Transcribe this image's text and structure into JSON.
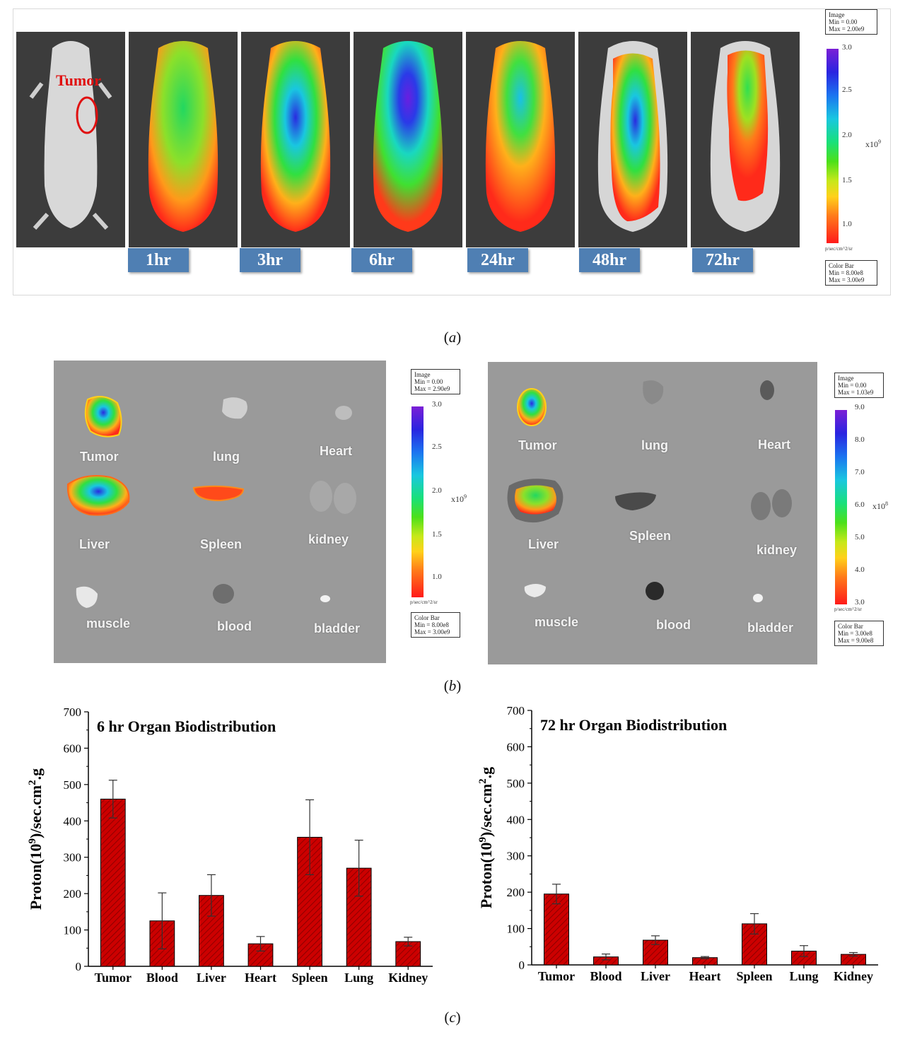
{
  "panel_a": {
    "tumor_label": "Tumor",
    "time_labels": [
      "1hr",
      "3hr",
      "6hr",
      "24hr",
      "48hr",
      "72hr"
    ],
    "colorbar": {
      "image_box": [
        "Image",
        "Min = 0.00",
        "Max = 2.00e9"
      ],
      "ticks": [
        "3.0",
        "2.5",
        "2.0",
        "1.5",
        "1.0"
      ],
      "exponent": "x10",
      "exponent_power": "9",
      "units": "p/sec/cm^2/sr",
      "color_box": [
        "Color Bar",
        "Min = 8.00e8",
        "Max = 3.00e9"
      ]
    },
    "caption": "a"
  },
  "panel_b": {
    "left": {
      "organs": [
        "Tumor",
        "lung",
        "Heart",
        "Liver",
        "Spleen",
        "kidney",
        "muscle",
        "blood",
        "bladder"
      ],
      "colorbar": {
        "image_box": [
          "Image",
          "Min = 0.00",
          "Max = 2.90e9"
        ],
        "ticks": [
          "3.0",
          "2.5",
          "2.0",
          "1.5",
          "1.0"
        ],
        "exponent": "x10",
        "exponent_power": "9",
        "units": "p/sec/cm^2/sr",
        "color_box": [
          "Color Bar",
          "Min = 8.00e8",
          "Max = 3.00e9"
        ]
      }
    },
    "right": {
      "organs": [
        "Tumor",
        "lung",
        "Heart",
        "Liver",
        "Spleen",
        "kidney",
        "muscle",
        "blood",
        "bladder"
      ],
      "colorbar": {
        "image_box": [
          "Image",
          "Min = 0.00",
          "Max = 1.03e9"
        ],
        "ticks": [
          "9.0",
          "8.0",
          "7.0",
          "6.0",
          "5.0",
          "4.0",
          "3.0"
        ],
        "exponent": "x10",
        "exponent_power": "8",
        "units": "p/sec/cm^2/sr",
        "color_box": [
          "Color Bar",
          "Min = 3.00e8",
          "Max = 9.00e8"
        ]
      }
    },
    "caption": "b"
  },
  "panel_c": {
    "caption": "c"
  },
  "chart_data": [
    {
      "type": "bar",
      "title": "6 hr Organ Biodistribution",
      "ylabel": "Proton(10^9)/sec.cm^2.g",
      "categories": [
        "Tumor",
        "Blood",
        "Liver",
        "Heart",
        "Spleen",
        "Lung",
        "Kidney"
      ],
      "values": [
        460,
        125,
        195,
        62,
        355,
        270,
        68
      ],
      "errors": [
        52,
        77,
        57,
        20,
        103,
        77,
        12
      ],
      "ylim": [
        0,
        700
      ],
      "yticks": [
        0,
        100,
        200,
        300,
        400,
        500,
        600,
        700
      ],
      "bar_color": "#cc0000",
      "hatch": true
    },
    {
      "type": "bar",
      "title": "72 hr Organ Biodistribution",
      "ylabel": "Proton(10^9)/sec.cm^2.g",
      "categories": [
        "Tumor",
        "Blood",
        "Liver",
        "Heart",
        "Spleen",
        "Lung",
        "Kidney"
      ],
      "values": [
        195,
        22,
        68,
        20,
        113,
        38,
        29
      ],
      "errors": [
        27,
        8,
        12,
        3,
        28,
        15,
        5
      ],
      "ylim": [
        0,
        700
      ],
      "yticks": [
        0,
        100,
        200,
        300,
        400,
        500,
        600,
        700
      ],
      "bar_color": "#cc0000",
      "hatch": true
    }
  ]
}
